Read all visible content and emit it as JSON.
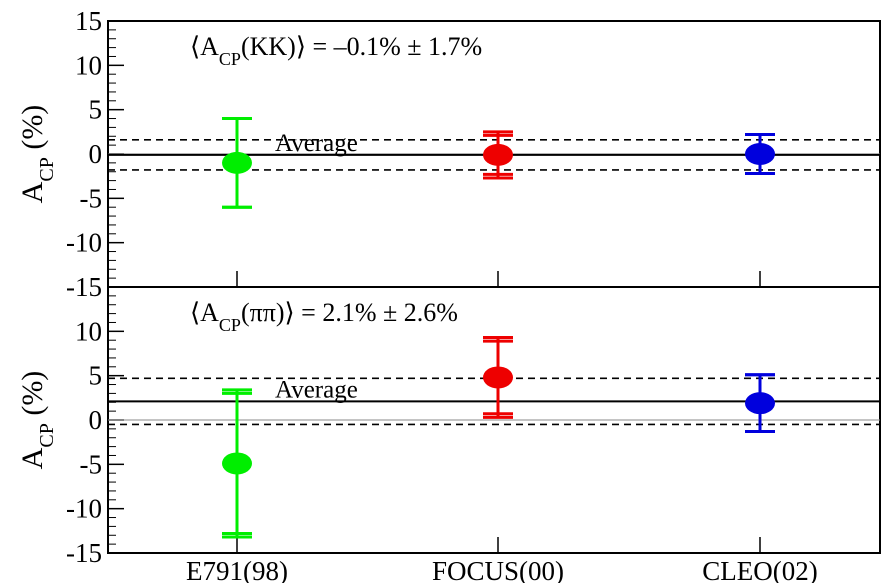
{
  "chart_data": [
    {
      "type": "scatter",
      "panel": "top",
      "annotation": {
        "prefix": "⟨A",
        "sub": "CP",
        "suffix": "(KK)⟩  =  –0.1% ± 1.7%"
      },
      "ylabel": {
        "main": "A",
        "sub": "CP",
        "rest": " (%)"
      },
      "ylim": [
        -15,
        15
      ],
      "yticks": [
        15,
        10,
        5,
        0,
        -5,
        -10,
        -15
      ],
      "ytick_labels": [
        "15",
        "10",
        "5",
        "0",
        "-5",
        "-10",
        "-15"
      ],
      "categories": [
        "E791(98)",
        "FOCUS(00)",
        "CLEO(02)"
      ],
      "average": {
        "label": "Average",
        "value": -0.1,
        "band": [
          -1.8,
          1.6
        ]
      },
      "points": [
        {
          "category": "E791(98)",
          "value": -1.0,
          "err_stat": [
            -6.0,
            4.0
          ],
          "err_tot": [
            -6.0,
            4.0
          ],
          "color": "#00ee00"
        },
        {
          "category": "FOCUS(00)",
          "value": -0.1,
          "err_stat": [
            -2.3,
            2.1
          ],
          "err_tot": [
            -2.7,
            2.5
          ],
          "color": "#ee0000"
        },
        {
          "category": "CLEO(02)",
          "value": 0.0,
          "err_stat": [
            -2.2,
            2.2
          ],
          "err_tot": [
            -2.2,
            2.2
          ],
          "color": "#0000dd"
        }
      ]
    },
    {
      "type": "scatter",
      "panel": "bottom",
      "annotation": {
        "prefix": "⟨A",
        "sub": "CP",
        "suffix": "(ππ)⟩  =  2.1% ± 2.6%"
      },
      "ylabel": {
        "main": "A",
        "sub": "CP",
        "rest": " (%)"
      },
      "ylim": [
        -15,
        15
      ],
      "yticks": [
        10,
        5,
        0,
        -5,
        -10,
        -15
      ],
      "ytick_labels": [
        "10",
        "5",
        "0",
        "-5",
        "-10",
        "-15"
      ],
      "categories": [
        "E791(98)",
        "FOCUS(00)",
        "CLEO(02)"
      ],
      "xtick_labels": [
        "E791(98)",
        "FOCUS(00)",
        "CLEO(02)"
      ],
      "average": {
        "label": "Average",
        "value": 2.1,
        "band": [
          -0.5,
          4.7
        ]
      },
      "points": [
        {
          "category": "E791(98)",
          "value": -4.9,
          "err_stat": [
            -12.8,
            3.0
          ],
          "err_tot": [
            -13.2,
            3.4
          ],
          "color": "#00ee00"
        },
        {
          "category": "FOCUS(00)",
          "value": 4.8,
          "err_stat": [
            0.7,
            8.9
          ],
          "err_tot": [
            0.3,
            9.3
          ],
          "color": "#ee0000"
        },
        {
          "category": "CLEO(02)",
          "value": 1.9,
          "err_stat": [
            -1.3,
            5.1
          ],
          "err_tot": [
            -1.3,
            5.1
          ],
          "color": "#0000dd"
        }
      ]
    }
  ]
}
